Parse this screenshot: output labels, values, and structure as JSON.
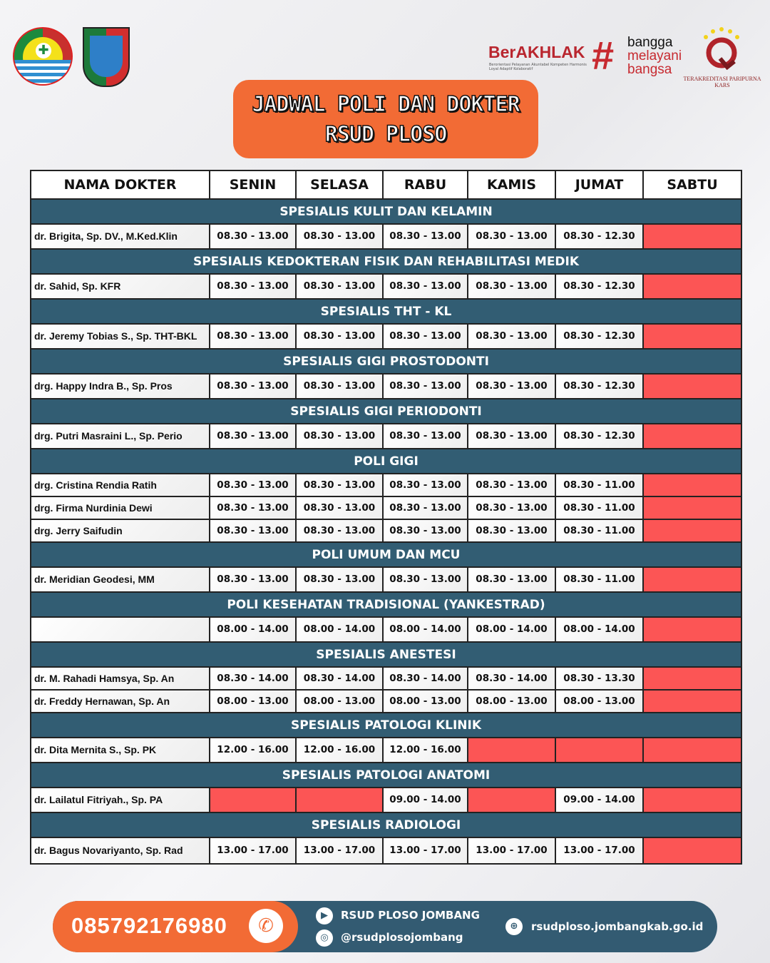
{
  "logos": {
    "rsud": "RSUD PLOSO KAB. JOMBANG",
    "berakhlak": "BerAKHLAK",
    "berakhlak_sub": "Berorientasi Pelayanan Akuntabel Kompeten Harmonis Loyal Adaptif Kolaboratif",
    "bangga": [
      "bangga",
      "melayani",
      "bangsa"
    ],
    "kars": "TERAKREDITASI PARIPURNA KARS"
  },
  "title": {
    "line1": "JADWAL POLI DAN DOKTER",
    "line2": "RSUD PLOSO"
  },
  "table": {
    "headers": [
      "NAMA DOKTER",
      "SENIN",
      "SELASA",
      "RABU",
      "KAMIS",
      "JUMAT",
      "SABTU"
    ],
    "sections": [
      {
        "name": "SPESIALIS KULIT DAN KELAMIN",
        "rows": [
          [
            "dr. Brigita, Sp. DV., M.Ked.Klin",
            "08.30 - 13.00",
            "08.30 - 13.00",
            "08.30 - 13.00",
            "08.30 - 13.00",
            "08.30 - 12.30",
            ""
          ]
        ]
      },
      {
        "name": "SPESIALIS KEDOKTERAN FISIK DAN REHABILITASI MEDIK",
        "rows": [
          [
            "dr. Sahid, Sp. KFR",
            "08.30 - 13.00",
            "08.30 - 13.00",
            "08.30 - 13.00",
            "08.30 - 13.00",
            "08.30 - 12.30",
            ""
          ]
        ]
      },
      {
        "name": "SPESIALIS THT - KL",
        "rows": [
          [
            "dr. Jeremy Tobias S., Sp. THT-BKL",
            "08.30 - 13.00",
            "08.30 - 13.00",
            "08.30 - 13.00",
            "08.30 - 13.00",
            "08.30 - 12.30",
            ""
          ]
        ]
      },
      {
        "name": "SPESIALIS GIGI PROSTODONTI",
        "rows": [
          [
            "drg. Happy Indra B., Sp. Pros",
            "08.30 - 13.00",
            "08.30 - 13.00",
            "08.30 - 13.00",
            "08.30 - 13.00",
            "08.30 - 12.30",
            ""
          ]
        ]
      },
      {
        "name": "SPESIALIS GIGI PERIODONTI",
        "rows": [
          [
            "drg. Putri Masraini L., Sp. Perio",
            "08.30 - 13.00",
            "08.30 - 13.00",
            "08.30 - 13.00",
            "08.30 - 13.00",
            "08.30 - 12.30",
            ""
          ]
        ]
      },
      {
        "name": "POLI GIGI",
        "rows": [
          [
            "drg. Cristina Rendia Ratih",
            "08.30 - 13.00",
            "08.30 - 13.00",
            "08.30 - 13.00",
            "08.30 - 13.00",
            "08.30 - 11.00",
            ""
          ],
          [
            "drg. Firma Nurdinia Dewi",
            "08.30 - 13.00",
            "08.30 - 13.00",
            "08.30 - 13.00",
            "08.30 - 13.00",
            "08.30 - 11.00",
            ""
          ],
          [
            "drg. Jerry Saifudin",
            "08.30 - 13.00",
            "08.30 - 13.00",
            "08.30 - 13.00",
            "08.30 - 13.00",
            "08.30 - 11.00",
            ""
          ]
        ]
      },
      {
        "name": "POLI UMUM DAN MCU",
        "rows": [
          [
            "dr. Meridian Geodesi, MM",
            "08.30 - 13.00",
            "08.30 - 13.00",
            "08.30 - 13.00",
            "08.30 - 13.00",
            "08.30 - 11.00",
            ""
          ]
        ]
      },
      {
        "name": "POLI KESEHATAN TRADISIONAL (YANKESTRAD)",
        "rows": [
          [
            "",
            "08.00 - 14.00",
            "08.00 - 14.00",
            "08.00 - 14.00",
            "08.00 - 14.00",
            "08.00 - 14.00",
            ""
          ]
        ]
      },
      {
        "name": "SPESIALIS ANESTESI",
        "rows": [
          [
            "dr. M. Rahadi Hamsya, Sp. An",
            "08.30 - 14.00",
            "08.30 - 14.00",
            "08.30 - 14.00",
            "08.30 - 14.00",
            "08.30 - 13.30",
            ""
          ],
          [
            "dr. Freddy Hernawan, Sp. An",
            "08.00 - 13.00",
            "08.00 - 13.00",
            "08.00 - 13.00",
            "08.00 - 13.00",
            "08.00 - 13.00",
            ""
          ]
        ]
      },
      {
        "name": "SPESIALIS PATOLOGI KLINIK",
        "rows": [
          [
            "dr. Dita Mernita S., Sp. PK",
            "12.00 - 16.00",
            "12.00 - 16.00",
            "12.00 - 16.00",
            "",
            "",
            ""
          ]
        ]
      },
      {
        "name": "SPESIALIS PATOLOGI ANATOMI",
        "rows": [
          [
            "dr. Lailatul Fitriyah., Sp. PA",
            "",
            "",
            "09.00 - 14.00",
            "",
            "09.00 - 14.00",
            ""
          ]
        ]
      },
      {
        "name": "SPESIALIS RADIOLOGI",
        "rows": [
          [
            "dr. Bagus Novariyanto, Sp. Rad",
            "13.00 - 17.00",
            "13.00 - 17.00",
            "13.00 - 17.00",
            "13.00 - 17.00",
            "13.00 - 17.00",
            ""
          ]
        ]
      }
    ],
    "closed_color": "#fc5555",
    "section_color": "#325d73"
  },
  "footer": {
    "phone": "085792176980",
    "youtube": "RSUD PLOSO JOMBANG",
    "instagram": "@rsudplosojombang",
    "website": "rsudploso.jombangkab.go.id"
  },
  "colors": {
    "accent": "#f26b35",
    "dark": "#335b72"
  }
}
